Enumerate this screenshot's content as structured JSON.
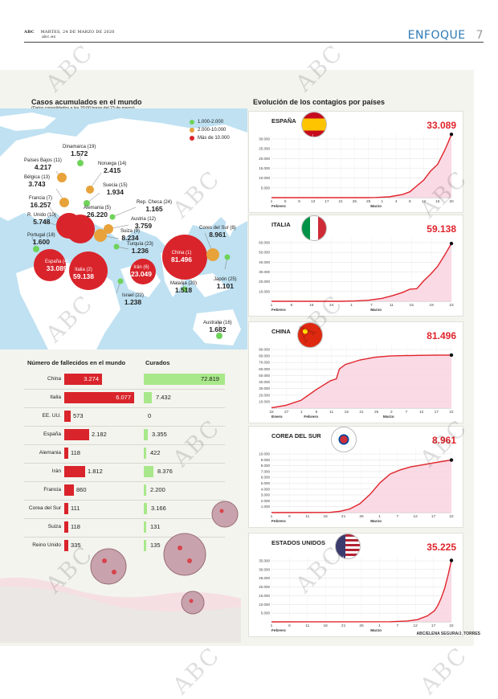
{
  "header": {
    "paper": "ABC",
    "date": "MARTES, 24 DE MARZO DE 2020",
    "site": "abc.es",
    "section": "ENFOQUE",
    "page_number": "7"
  },
  "watermark": "ABC",
  "map": {
    "title": "Casos acumulados en el mundo",
    "subtitle": "(Datos consolidados a las 20:00 horas del 23 de marzo)",
    "legend": [
      {
        "label": "1.000-2.000",
        "color": "#6fd35a"
      },
      {
        "label": "2.000-10.000",
        "color": "#e8a23a"
      },
      {
        "label": "Más de 10.000",
        "color": "#d9242b"
      }
    ],
    "countries": [
      {
        "name": "Dinamarca (19)",
        "value": "1.572"
      },
      {
        "name": "Países Bajos (11)",
        "value": "4.217"
      },
      {
        "name": "Noruega (14)",
        "value": "2.415"
      },
      {
        "name": "Bélgica (13)",
        "value": "3.743"
      },
      {
        "name": "Suecia (15)",
        "value": "1.934"
      },
      {
        "name": "Francia (7)",
        "value": "16.257"
      },
      {
        "name": "Alemania (5)",
        "value": "26.220"
      },
      {
        "name": "Rep. Checa (24)",
        "value": "1.165"
      },
      {
        "name": "R. Unido (10)",
        "value": "5.748"
      },
      {
        "name": "Austria (12)",
        "value": "3.759"
      },
      {
        "name": "Portugal (18)",
        "value": "1.600"
      },
      {
        "name": "Suiza (9)",
        "value": "8.234"
      },
      {
        "name": "Turquía (23)",
        "value": "1.236"
      },
      {
        "name": "España (4)",
        "value": "33.089"
      },
      {
        "name": "Italia (2)",
        "value": "59.138"
      },
      {
        "name": "Irán (6)",
        "value": "23.049"
      },
      {
        "name": "China (1)",
        "value": "81.496"
      },
      {
        "name": "Cores del Sur (8)",
        "value": "8.961"
      },
      {
        "name": "Malasia (20)",
        "value": "1.518"
      },
      {
        "name": "Japón (25)",
        "value": "1.101"
      },
      {
        "name": "Israel (22)",
        "value": "1.238"
      },
      {
        "name": "Australia (16)",
        "value": "1.682"
      }
    ]
  },
  "deaths": {
    "title": "Número de fallecidos en el mundo",
    "recovered_title": "Curados",
    "rows": [
      {
        "country": "China",
        "deaths": 3274,
        "deaths_label": "3.274",
        "recovered": 72819,
        "recovered_label": "72.819"
      },
      {
        "country": "Italia",
        "deaths": 6077,
        "deaths_label": "6.077",
        "recovered": 7432,
        "recovered_label": "7.432"
      },
      {
        "country": "EE. UU.",
        "deaths": 573,
        "deaths_label": "573",
        "recovered": 0,
        "recovered_label": "0"
      },
      {
        "country": "España",
        "deaths": 2182,
        "deaths_label": "2.182",
        "recovered": 3355,
        "recovered_label": "3.355"
      },
      {
        "country": "Alemania",
        "deaths": 118,
        "deaths_label": "118",
        "recovered": 422,
        "recovered_label": "422"
      },
      {
        "country": "Irán",
        "deaths": 1812,
        "deaths_label": "1.812",
        "recovered": 8376,
        "recovered_label": "8.376"
      },
      {
        "country": "Francia",
        "deaths": 860,
        "deaths_label": "860",
        "recovered": 2200,
        "recovered_label": "2.200"
      },
      {
        "country": "Corea del Sur",
        "deaths": 111,
        "deaths_label": "111",
        "recovered": 3166,
        "recovered_label": "3.166"
      },
      {
        "country": "Suiza",
        "deaths": 118,
        "deaths_label": "118",
        "recovered": 131,
        "recovered_label": "131"
      },
      {
        "country": "Reino Unido",
        "deaths": 335,
        "deaths_label": "335",
        "recovered": 135,
        "recovered_label": "135"
      }
    ]
  },
  "evolution": {
    "title": "Evolución de los contagios por países"
  },
  "chart_data": [
    {
      "type": "area",
      "title": "ESPAÑA",
      "last_value": "33.089",
      "ylim": [
        0,
        30000
      ],
      "yticks": [
        "5.000",
        "10.000",
        "15.000",
        "20.000",
        "25.000",
        "30.000"
      ],
      "xticks": [
        "1",
        "5",
        "9",
        "13",
        "17",
        "21",
        "25",
        "29",
        "1",
        "4",
        "8",
        "12",
        "16",
        "20"
      ],
      "month_labels": [
        "Febrero",
        "Marzo"
      ],
      "x": [
        0,
        28,
        30,
        34,
        38,
        40,
        42,
        44,
        46,
        48,
        50,
        51,
        52
      ],
      "y": [
        0,
        0,
        100,
        400,
        1700,
        3000,
        6000,
        9000,
        13700,
        17000,
        24000,
        28000,
        33089
      ]
    },
    {
      "type": "area",
      "title": "ITALIA",
      "last_value": "59.138",
      "ylim": [
        0,
        60000
      ],
      "yticks": [
        "10.000",
        "20.000",
        "30.000",
        "40.000",
        "50.000",
        "60.000"
      ],
      "xticks": [
        "1",
        "8",
        "16",
        "24",
        "1",
        "7",
        "11",
        "15",
        "19",
        "23"
      ],
      "month_labels": [
        "Febrero",
        "Marzo"
      ],
      "x": [
        0,
        20,
        24,
        28,
        32,
        35,
        38,
        40,
        42,
        44,
        46,
        48,
        50,
        52
      ],
      "y": [
        0,
        0,
        300,
        1100,
        3000,
        5800,
        9200,
        12400,
        12900,
        21000,
        27900,
        35700,
        47000,
        59138
      ]
    },
    {
      "type": "area",
      "title": "CHINA",
      "last_value": "81.496",
      "ylim": [
        0,
        90000
      ],
      "yticks": [
        "10.000",
        "20.000",
        "30.000",
        "40.000",
        "50.000",
        "60.000",
        "70.000",
        "80.000",
        "90.000"
      ],
      "xticks": [
        "22",
        "27",
        "1",
        "6",
        "11",
        "16",
        "21",
        "26",
        "2",
        "7",
        "12",
        "17",
        "22"
      ],
      "month_labels": [
        "Enero",
        "Febrero",
        "Marzo"
      ],
      "x": [
        0,
        5,
        10,
        15,
        20,
        22,
        23,
        25,
        30,
        35,
        40,
        45,
        50,
        55,
        61
      ],
      "y": [
        500,
        4500,
        12000,
        28000,
        42000,
        45000,
        60000,
        67000,
        74000,
        78000,
        80000,
        80600,
        81000,
        81200,
        81496
      ]
    },
    {
      "type": "area",
      "title": "COREA DEL SUR",
      "last_value": "8.961",
      "ylim": [
        0,
        10000
      ],
      "yticks": [
        "1.000",
        "2.000",
        "3.000",
        "4.000",
        "5.000",
        "6.000",
        "7.000",
        "8.000",
        "9.000",
        "10.000"
      ],
      "xticks": [
        "1",
        "6",
        "11",
        "16",
        "21",
        "26",
        "1",
        "7",
        "12",
        "17",
        "22"
      ],
      "month_labels": [
        "Febrero",
        "Marzo"
      ],
      "x": [
        0,
        17,
        20,
        23,
        26,
        29,
        32,
        35,
        38,
        41,
        44,
        47,
        50,
        53
      ],
      "y": [
        0,
        30,
        200,
        600,
        1500,
        3100,
        5100,
        6600,
        7300,
        7800,
        8100,
        8400,
        8700,
        8961
      ]
    },
    {
      "type": "area",
      "title": "ESTADOS UNIDOS",
      "last_value": "35.225",
      "ylim": [
        0,
        35000
      ],
      "yticks": [
        "5.000",
        "10.000",
        "15.000",
        "20.000",
        "25.000",
        "30.000",
        "35.000"
      ],
      "xticks": [
        "1",
        "6",
        "11",
        "16",
        "21",
        "26",
        "1",
        "7",
        "12",
        "17",
        "22"
      ],
      "month_labels": [
        "Febrero",
        "Marzo"
      ],
      "x": [
        0,
        35,
        40,
        43,
        46,
        48,
        49,
        50,
        51,
        52,
        53
      ],
      "y": [
        0,
        100,
        500,
        1300,
        3500,
        6400,
        9400,
        13700,
        19100,
        26700,
        35225
      ]
    }
  ],
  "credit": "ABC/ELENA SEGURA/J. TORRES"
}
